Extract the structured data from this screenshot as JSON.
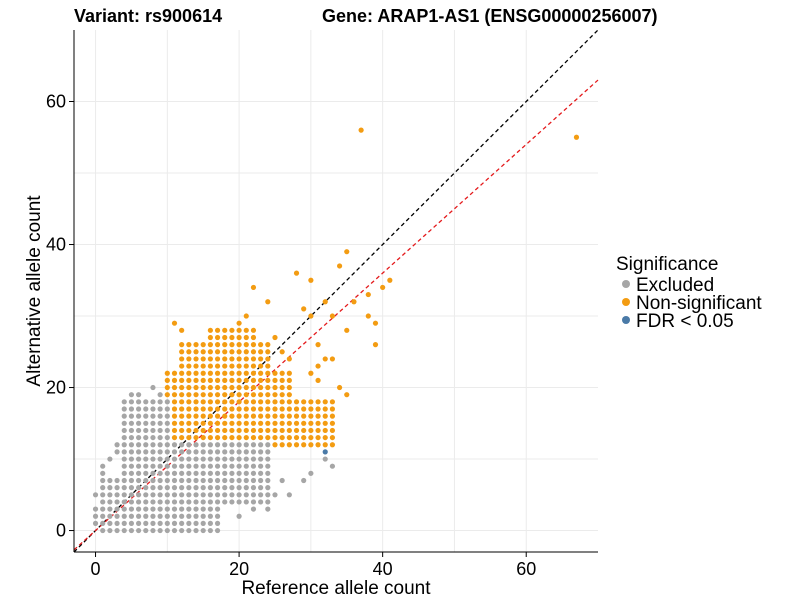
{
  "header": {
    "variant_label": "Variant: rs900614",
    "gene_label": "Gene: ARAP1-AS1 (ENSG00000256007)"
  },
  "chart_data": {
    "type": "scatter",
    "title": "",
    "xlabel": "Reference allele count",
    "ylabel": "Alternative allele count",
    "xlim": [
      -3,
      70
    ],
    "ylim": [
      -3,
      70
    ],
    "x_ticks": [
      0,
      20,
      40,
      60
    ],
    "y_ticks": [
      0,
      20,
      40,
      60
    ],
    "grid": true,
    "reference_lines": [
      {
        "style": "dashed",
        "color": "#000000",
        "slope": 1,
        "intercept": 0
      },
      {
        "style": "dashed",
        "color": "#e41a1c",
        "slope": 0.9,
        "intercept": 0
      }
    ],
    "legend": {
      "title": "Significance",
      "placement": "right",
      "entries": [
        {
          "label": "Excluded",
          "color": "#a6a6a6"
        },
        {
          "label": "Non-significant",
          "color": "#f39c12"
        },
        {
          "label": "FDR < 0.05",
          "color": "#4a7aa7"
        }
      ]
    },
    "series": [
      {
        "name": "Excluded",
        "color": "#a6a6a6",
        "regions": [
          {
            "x": [
              1,
              3
            ],
            "y": [
              0,
              7
            ]
          },
          {
            "x": [
              4,
              9
            ],
            "y": [
              0,
              9
            ]
          },
          {
            "x": [
              4,
              10
            ],
            "y": [
              10,
              18
            ]
          },
          {
            "x": [
              10,
              17
            ],
            "y": [
              0,
              12
            ]
          },
          {
            "x": [
              18,
              24
            ],
            "y": [
              4,
              12
            ]
          }
        ],
        "points": [
          [
            0,
            1
          ],
          [
            0,
            2
          ],
          [
            0,
            3
          ],
          [
            0,
            5
          ],
          [
            1,
            8
          ],
          [
            1,
            9
          ],
          [
            2,
            10
          ],
          [
            3,
            11
          ],
          [
            3,
            12
          ],
          [
            5,
            19
          ],
          [
            6,
            19
          ],
          [
            8,
            20
          ],
          [
            9,
            19
          ],
          [
            15,
            1
          ],
          [
            22,
            3
          ],
          [
            23,
            5
          ],
          [
            25,
            5
          ],
          [
            27,
            5
          ],
          [
            29,
            7
          ],
          [
            30,
            8
          ],
          [
            26,
            7
          ],
          [
            20,
            2
          ],
          [
            24,
            3
          ],
          [
            32,
            10
          ],
          [
            33,
            9
          ]
        ]
      },
      {
        "name": "Non-significant",
        "color": "#f39c12",
        "regions": [
          {
            "x": [
              10,
              27
            ],
            "y": [
              12,
              22
            ]
          },
          {
            "x": [
              12,
              24
            ],
            "y": [
              23,
              26
            ]
          },
          {
            "x": [
              16,
              22
            ],
            "y": [
              27,
              28
            ]
          },
          {
            "x": [
              25,
              33
            ],
            "y": [
              12,
              18
            ]
          }
        ],
        "points": [
          [
            37,
            56
          ],
          [
            67,
            55
          ],
          [
            11,
            29
          ],
          [
            12,
            28
          ],
          [
            20,
            29
          ],
          [
            21,
            30
          ],
          [
            22,
            34
          ],
          [
            24,
            32
          ],
          [
            28,
            36
          ],
          [
            30,
            35
          ],
          [
            34,
            37
          ],
          [
            35,
            39
          ],
          [
            36,
            32
          ],
          [
            38,
            33
          ],
          [
            39,
            29
          ],
          [
            41,
            35
          ],
          [
            40,
            34
          ],
          [
            38,
            30
          ],
          [
            35,
            28
          ],
          [
            39,
            26
          ],
          [
            29,
            31
          ],
          [
            30,
            30
          ],
          [
            32,
            32
          ],
          [
            33,
            30
          ],
          [
            31,
            26
          ],
          [
            33,
            24
          ],
          [
            30,
            22
          ],
          [
            31,
            21
          ],
          [
            34,
            20
          ],
          [
            35,
            19
          ],
          [
            32,
            24
          ],
          [
            31,
            23
          ],
          [
            26,
            25
          ],
          [
            27,
            24
          ],
          [
            25,
            27
          ],
          [
            13,
            11
          ],
          [
            14,
            10
          ],
          [
            11,
            9
          ],
          [
            12,
            10
          ]
        ]
      },
      {
        "name": "FDR < 0.05",
        "color": "#4a7aa7",
        "points": [
          [
            32,
            11
          ]
        ]
      }
    ]
  }
}
